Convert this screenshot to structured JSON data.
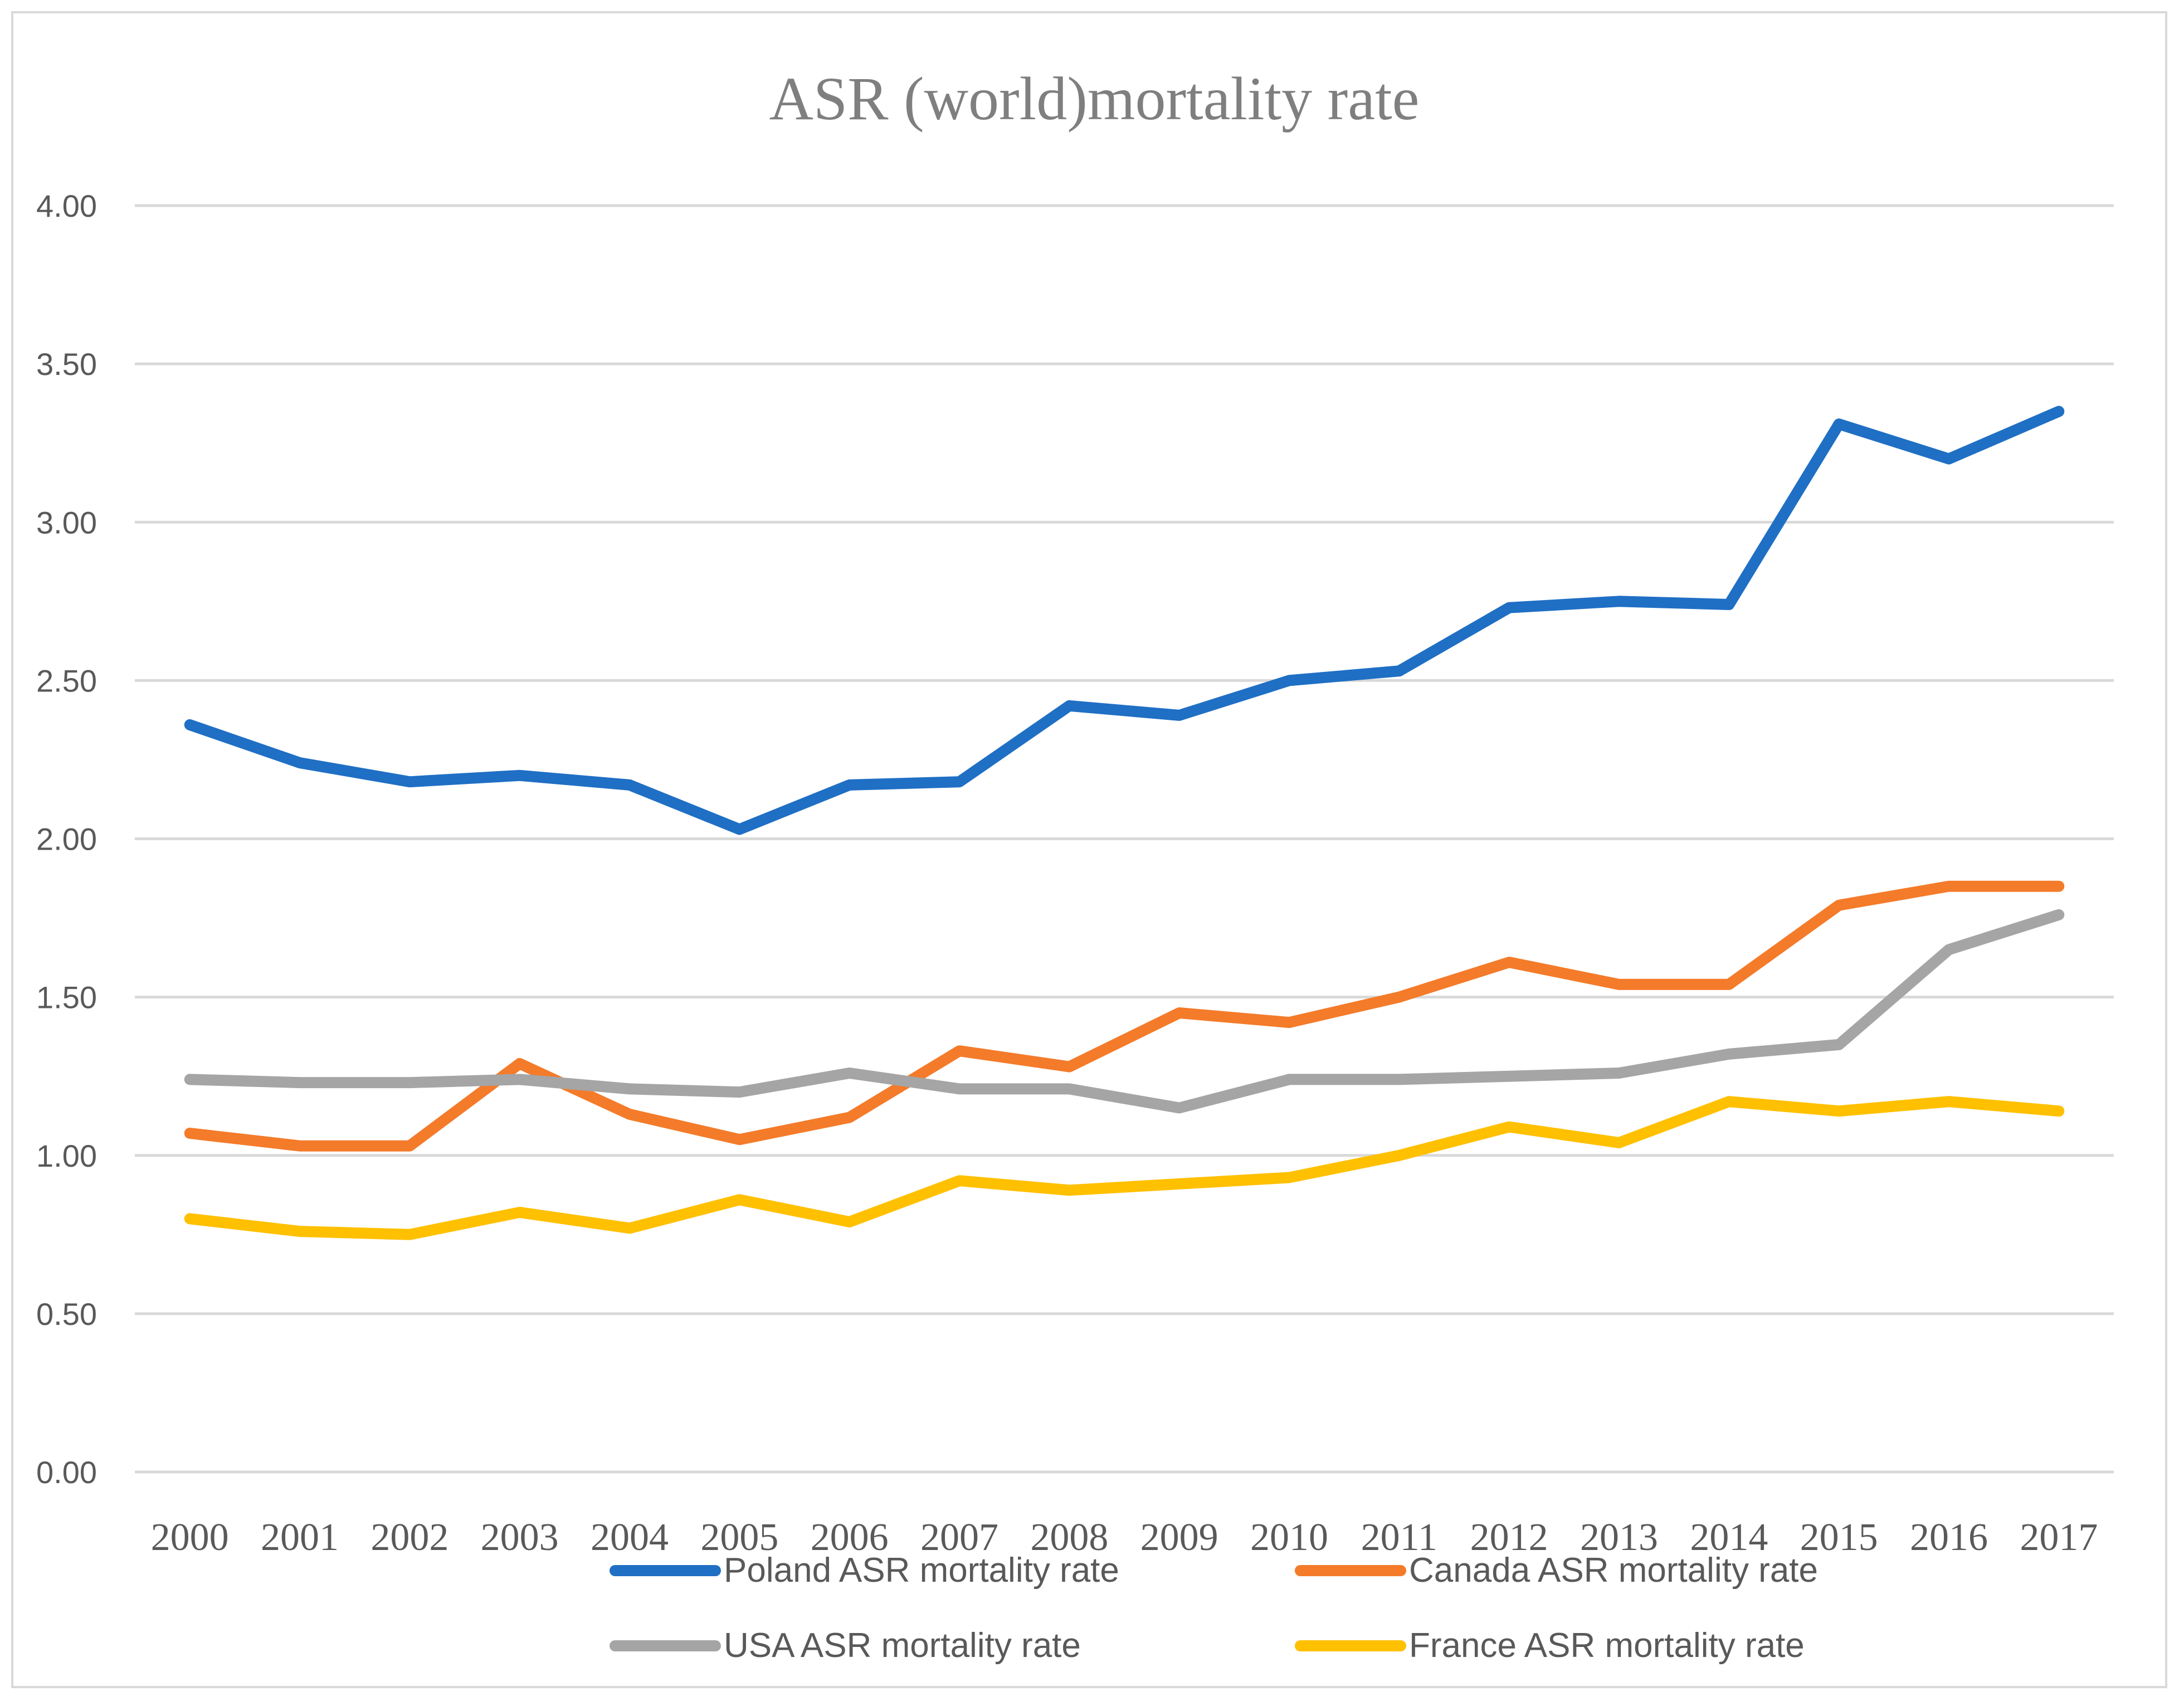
{
  "chart_data": {
    "type": "line",
    "title": "ASR (world)mortality rate",
    "xlabel": "",
    "ylabel": "",
    "ylim": [
      0,
      4
    ],
    "yticks": [
      "0.00",
      "0.50",
      "1.00",
      "1.50",
      "2.00",
      "2.50",
      "3.00",
      "3.50",
      "4.00"
    ],
    "grid": true,
    "legend_position": "bottom",
    "categories": [
      "2000",
      "2001",
      "2002",
      "2003",
      "2004",
      "2005",
      "2006",
      "2007",
      "2008",
      "2009",
      "2010",
      "2011",
      "2012",
      "2013",
      "2014",
      "2015",
      "2016",
      "2017"
    ],
    "series": [
      {
        "name": "Poland ASR mortality rate",
        "color": "#1f6fc4",
        "values": [
          2.36,
          2.24,
          2.18,
          2.2,
          2.17,
          2.03,
          2.17,
          2.18,
          2.42,
          2.39,
          2.5,
          2.53,
          2.73,
          2.75,
          2.74,
          3.31,
          3.2,
          3.35
        ]
      },
      {
        "name": "Canada ASR mortality rate",
        "color": "#f47b2a",
        "values": [
          1.07,
          1.03,
          1.03,
          1.29,
          1.13,
          1.05,
          1.12,
          1.33,
          1.28,
          1.45,
          1.42,
          1.5,
          1.61,
          1.54,
          1.54,
          1.79,
          1.85,
          1.85
        ]
      },
      {
        "name": "USA ASR mortality  rate",
        "color": "#a5a5a5",
        "values": [
          1.24,
          1.23,
          1.23,
          1.24,
          1.21,
          1.2,
          1.26,
          1.21,
          1.21,
          1.15,
          1.24,
          1.24,
          1.25,
          1.26,
          1.32,
          1.35,
          1.65,
          1.76
        ]
      },
      {
        "name": "France ASR mortality rate",
        "color": "#ffc000",
        "values": [
          0.8,
          0.76,
          0.75,
          0.82,
          0.77,
          0.86,
          0.79,
          0.92,
          0.89,
          0.91,
          0.93,
          1.0,
          1.09,
          1.04,
          1.17,
          1.14,
          1.17,
          1.14
        ]
      }
    ]
  }
}
